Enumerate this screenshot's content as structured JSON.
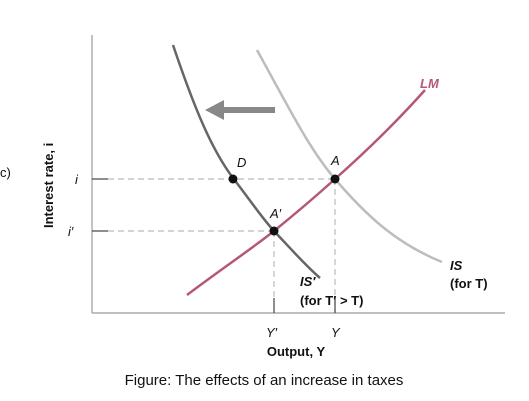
{
  "panel_label": "c)",
  "axes": {
    "y_label": "Interest rate, i",
    "x_label": "Output, Y"
  },
  "ticks": {
    "i": "i",
    "i_prime": "i′",
    "y_prime": "Y′",
    "y": "Y"
  },
  "points": {
    "d": "D",
    "a": "A",
    "a_prime": "A′"
  },
  "curves": {
    "lm": "LM",
    "is": "IS",
    "is_note": "(for T)",
    "is_prime": "IS′",
    "is_prime_note": "(for T′ > T)"
  },
  "caption": "Figure: The effects of an increase in taxes"
}
